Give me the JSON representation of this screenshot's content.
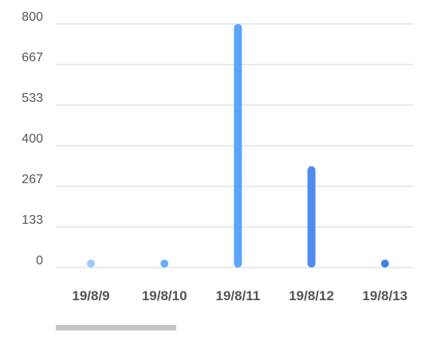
{
  "chart_data": {
    "type": "bar",
    "categories": [
      "19/8/9",
      "19/8/10",
      "19/8/11",
      "19/8/12",
      "19/8/13"
    ],
    "values": [
      5,
      8,
      800,
      333,
      12
    ],
    "yticks": [
      "0",
      "133",
      "267",
      "400",
      "533",
      "667",
      "800"
    ],
    "ylim": [
      0,
      800
    ],
    "title": "",
    "xlabel": "",
    "ylabel": "",
    "grid": true,
    "legend": "none",
    "bar_colors": [
      "#9cc8fb",
      "#6aaefc",
      "#5aa5fb",
      "#4f8aef",
      "#3f7fe6"
    ]
  },
  "colors": {
    "grid": "#d6d6d6",
    "tick_text": "#555555",
    "scroll_thumb": "#c4c4c4"
  }
}
